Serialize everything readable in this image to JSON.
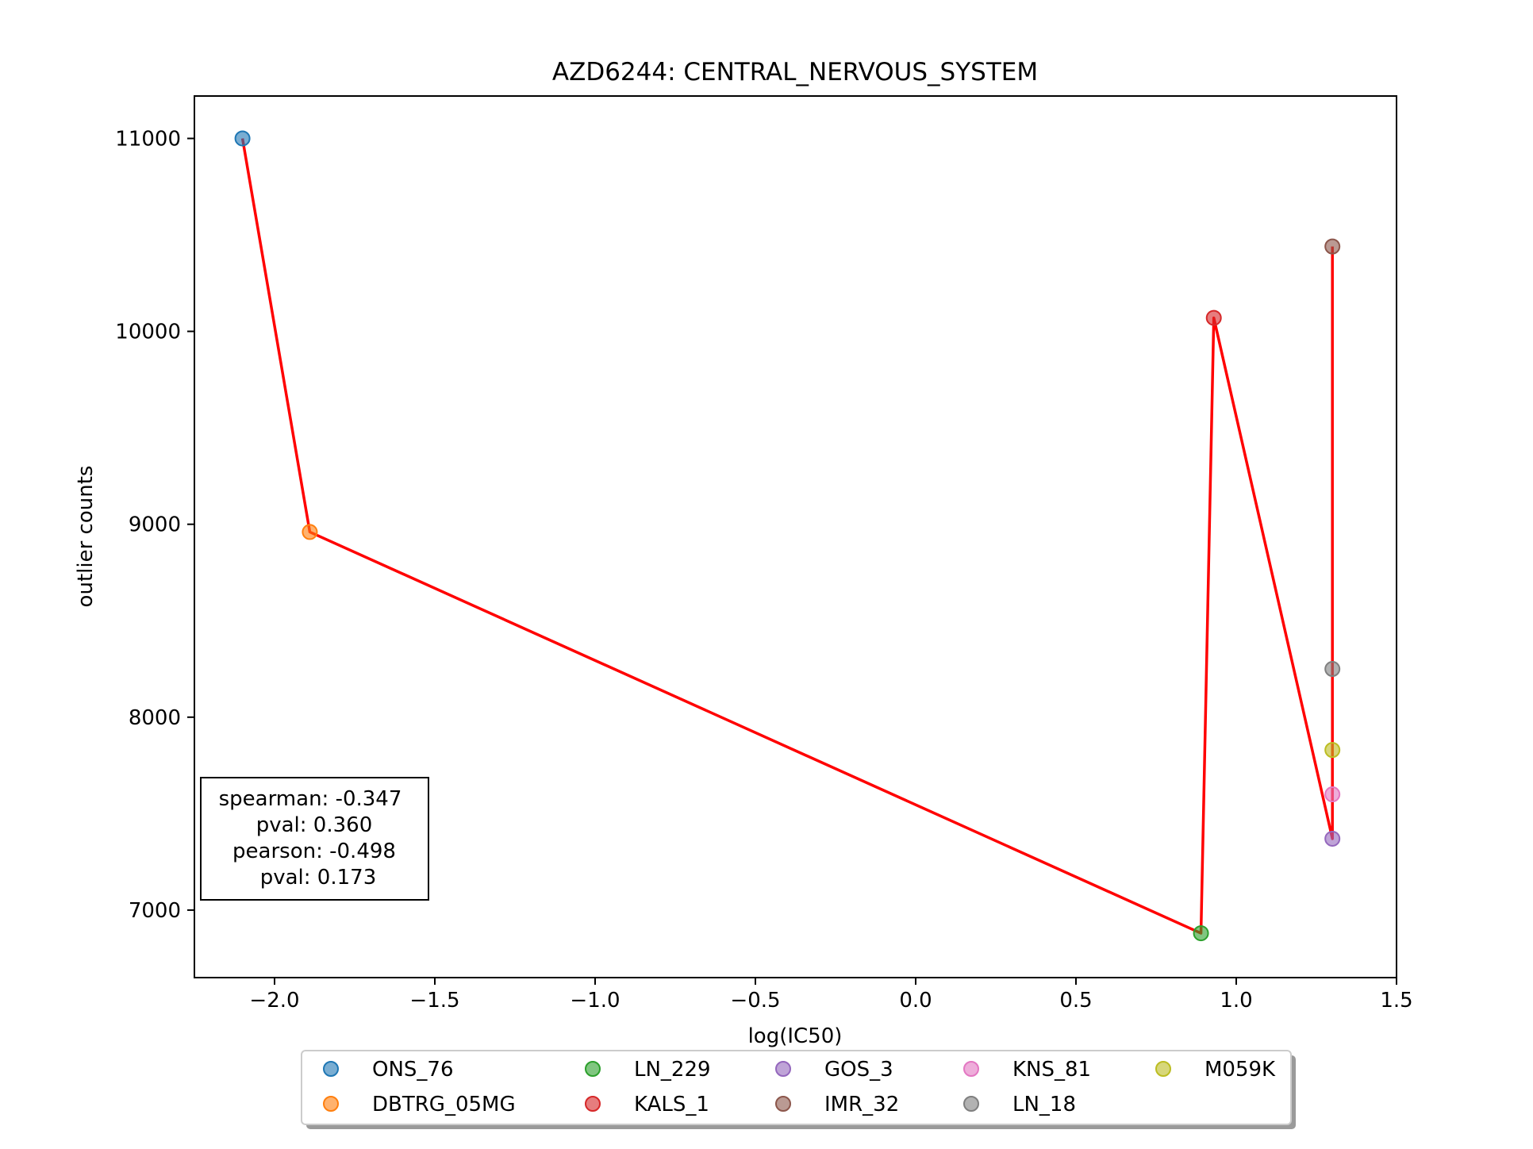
{
  "chart_data": {
    "type": "scatter",
    "title": "AZD6244: CENTRAL_NERVOUS_SYSTEM",
    "xlabel": "log(IC50)",
    "ylabel": "outlier counts",
    "xlim": [
      -2.25,
      1.5
    ],
    "ylim": [
      6650,
      11220
    ],
    "xticks": [
      -2.0,
      -1.5,
      -1.0,
      -0.5,
      0.0,
      0.5,
      1.0,
      1.5
    ],
    "xtick_labels": [
      "−2.0",
      "−1.5",
      "−1.0",
      "−0.5",
      "0.0",
      "0.5",
      "1.0",
      "1.5"
    ],
    "yticks": [
      7000,
      8000,
      9000,
      10000,
      11000
    ],
    "ytick_labels": [
      "7000",
      "8000",
      "9000",
      "10000",
      "11000"
    ],
    "grid": false,
    "series": [
      {
        "name": "ONS_76",
        "color": "#1f77b4",
        "x": -2.1,
        "y": 11000
      },
      {
        "name": "DBTRG_05MG",
        "color": "#ff7f0e",
        "x": -1.89,
        "y": 8960
      },
      {
        "name": "LN_229",
        "color": "#2ca02c",
        "x": 0.89,
        "y": 6880
      },
      {
        "name": "KALS_1",
        "color": "#d62728",
        "x": 0.93,
        "y": 10070
      },
      {
        "name": "GOS_3",
        "color": "#9467bd",
        "x": 1.3,
        "y": 7370
      },
      {
        "name": "IMR_32",
        "color": "#8c564b",
        "x": 1.3,
        "y": 10440
      },
      {
        "name": "KNS_81",
        "color": "#e377c2",
        "x": 1.3,
        "y": 7600
      },
      {
        "name": "LN_18",
        "color": "#7f7f7f",
        "x": 1.3,
        "y": 8250
      },
      {
        "name": "M059K",
        "color": "#bcbd22",
        "x": 1.3,
        "y": 7830
      }
    ],
    "trend_line": {
      "color": "#ff0000",
      "points": [
        [
          -2.1,
          11000
        ],
        [
          -1.89,
          8960
        ],
        [
          0.89,
          6880
        ],
        [
          0.93,
          10070
        ],
        [
          1.3,
          7370
        ],
        [
          1.3,
          10440
        ]
      ]
    },
    "stats_box": {
      "lines": [
        "spearman: -0.347",
        "pval: 0.360",
        "pearson: -0.498",
        "pval: 0.173"
      ],
      "placement": "lower-left"
    },
    "legend": {
      "placement": "bottom-center",
      "columns": 5
    }
  }
}
